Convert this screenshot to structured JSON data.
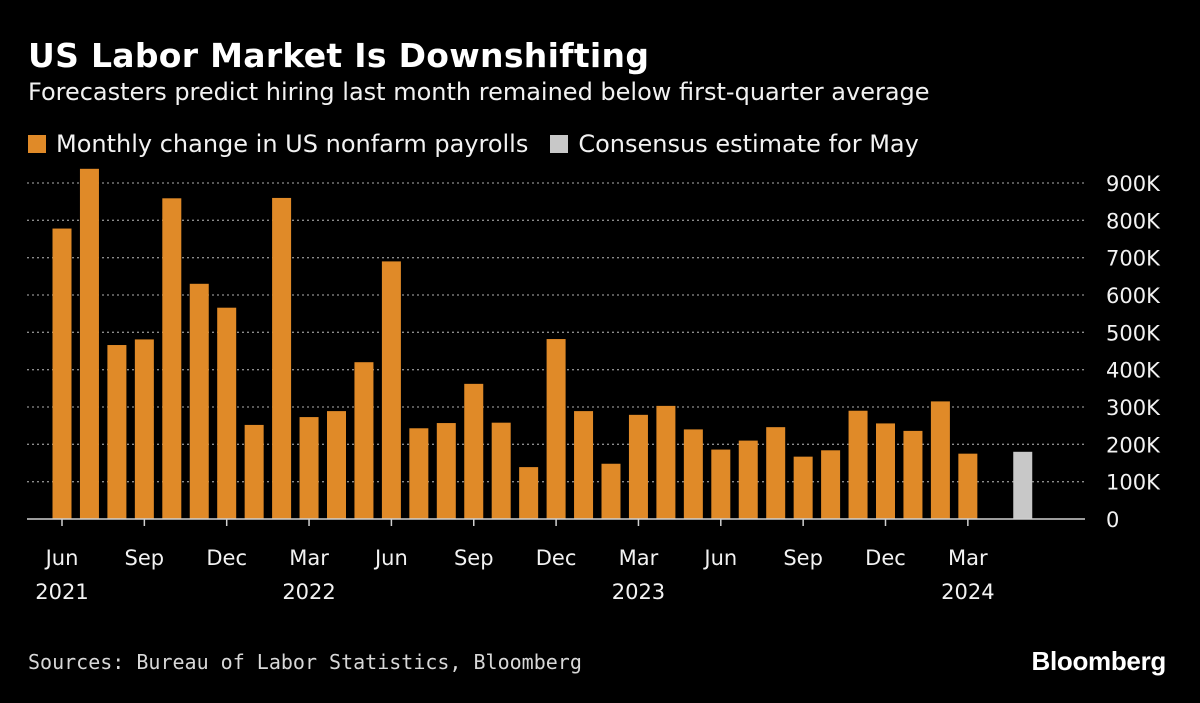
{
  "title": "US Labor Market Is Downshifting",
  "subtitle": "Forecasters predict hiring last month remained below first-quarter average",
  "legend": [
    {
      "label": "Monthly change in US nonfarm payrolls",
      "color": "#e08a28"
    },
    {
      "label": "Consensus estimate for May",
      "color": "#c8c8c8"
    }
  ],
  "footer": {
    "sources": "Sources: Bureau of Labor Statistics, Bloomberg",
    "brand": "Bloomberg"
  },
  "chart_data": {
    "type": "bar",
    "ylim": [
      0,
      900000
    ],
    "y_ticks": [
      {
        "value": 0,
        "label": "0"
      },
      {
        "value": 100000,
        "label": "100K"
      },
      {
        "value": 200000,
        "label": "200K"
      },
      {
        "value": 300000,
        "label": "300K"
      },
      {
        "value": 400000,
        "label": "400K"
      },
      {
        "value": 500000,
        "label": "500K"
      },
      {
        "value": 600000,
        "label": "600K"
      },
      {
        "value": 700000,
        "label": "700K"
      },
      {
        "value": 800000,
        "label": "800K"
      },
      {
        "value": 900000,
        "label": "900K"
      }
    ],
    "categories": [
      "2021-06",
      "2021-07",
      "2021-08",
      "2021-09",
      "2021-10",
      "2021-11",
      "2021-12",
      "2022-01",
      "2022-02",
      "2022-03",
      "2022-04",
      "2022-05",
      "2022-06",
      "2022-07",
      "2022-08",
      "2022-09",
      "2022-10",
      "2022-11",
      "2022-12",
      "2023-01",
      "2023-02",
      "2023-03",
      "2023-04",
      "2023-05",
      "2023-06",
      "2023-07",
      "2023-08",
      "2023-09",
      "2023-10",
      "2023-11",
      "2023-12",
      "2024-01",
      "2024-02",
      "2024-03",
      "2024-04",
      "2024-05"
    ],
    "series": [
      {
        "name": "Monthly change in US nonfarm payrolls",
        "color": "#e08a28",
        "values": [
          778000,
          938000,
          466000,
          481000,
          859000,
          630000,
          566000,
          252000,
          860000,
          273000,
          289000,
          420000,
          690000,
          243000,
          257000,
          362000,
          258000,
          139000,
          482000,
          289000,
          148000,
          279000,
          303000,
          240000,
          186000,
          210000,
          246000,
          167000,
          184000,
          290000,
          256000,
          236000,
          315000,
          175000,
          null,
          null
        ]
      },
      {
        "name": "Consensus estimate for May",
        "color": "#c8c8c8",
        "values": [
          null,
          null,
          null,
          null,
          null,
          null,
          null,
          null,
          null,
          null,
          null,
          null,
          null,
          null,
          null,
          null,
          null,
          null,
          null,
          null,
          null,
          null,
          null,
          null,
          null,
          null,
          null,
          null,
          null,
          null,
          null,
          null,
          null,
          null,
          null,
          180000
        ]
      }
    ],
    "x_ticks": [
      {
        "index": 0,
        "label": "Jun",
        "year": "2021"
      },
      {
        "index": 3,
        "label": "Sep",
        "year": ""
      },
      {
        "index": 6,
        "label": "Dec",
        "year": ""
      },
      {
        "index": 9,
        "label": "Mar",
        "year": "2022"
      },
      {
        "index": 12,
        "label": "Jun",
        "year": ""
      },
      {
        "index": 15,
        "label": "Sep",
        "year": ""
      },
      {
        "index": 18,
        "label": "Dec",
        "year": ""
      },
      {
        "index": 21,
        "label": "Mar",
        "year": "2023"
      },
      {
        "index": 24,
        "label": "Jun",
        "year": ""
      },
      {
        "index": 27,
        "label": "Sep",
        "year": ""
      },
      {
        "index": 30,
        "label": "Dec",
        "year": ""
      },
      {
        "index": 33,
        "label": "Mar",
        "year": "2024"
      }
    ],
    "grid": true
  }
}
